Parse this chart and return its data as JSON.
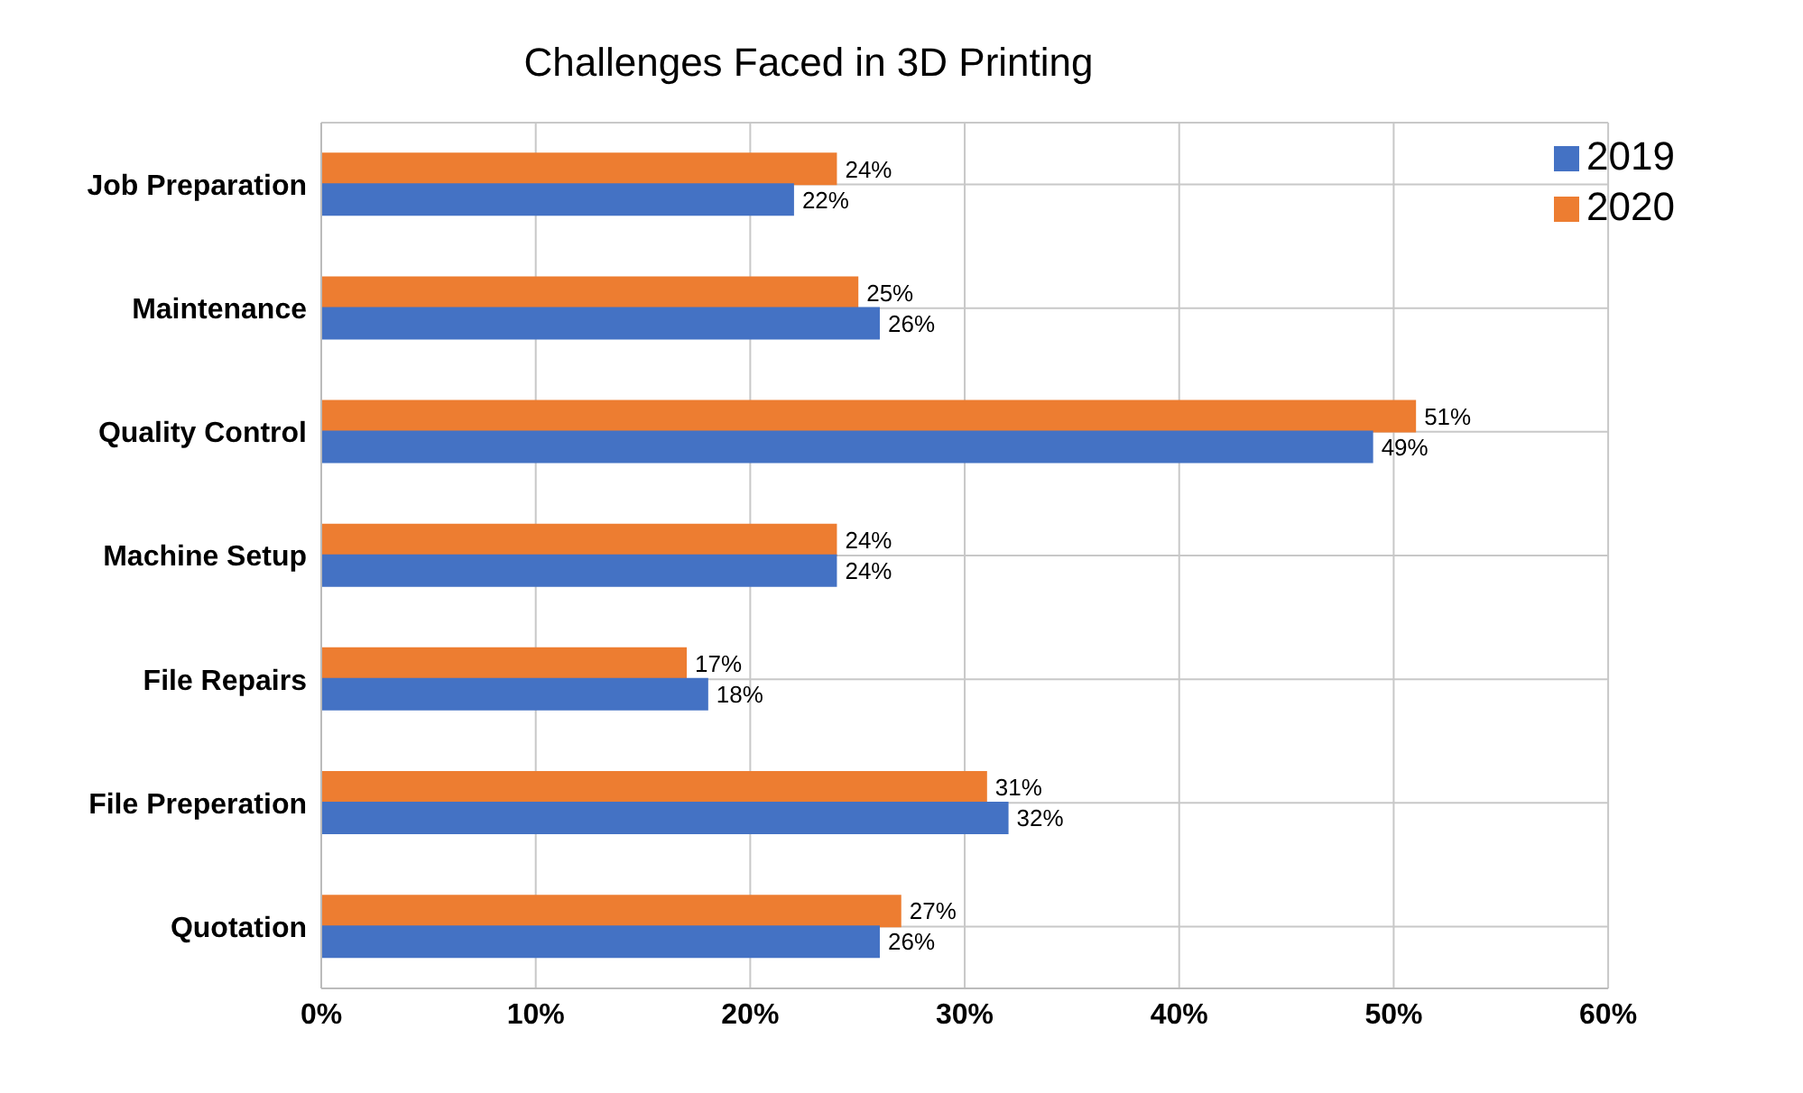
{
  "chart_data": {
    "type": "bar",
    "orientation": "horizontal",
    "title": "Challenges Faced in 3D Printing",
    "categories": [
      "Job Preparation",
      "Maintenance",
      "Quality Control",
      "Machine Setup",
      "File Repairs",
      "File Preperation",
      "Quotation"
    ],
    "series": [
      {
        "name": "2020",
        "color": "#ed7d31",
        "values": [
          24,
          25,
          51,
          24,
          17,
          31,
          27
        ],
        "value_labels": [
          "24%",
          "25%",
          "51%",
          "24%",
          "17%",
          "31%",
          "27%"
        ]
      },
      {
        "name": "2019",
        "color": "#4472c4",
        "values": [
          22,
          26,
          49,
          24,
          18,
          32,
          26
        ],
        "value_labels": [
          "22%",
          "26%",
          "49%",
          "24%",
          "18%",
          "32%",
          "26%"
        ]
      }
    ],
    "xlim": [
      0,
      60
    ],
    "xticks": [
      {
        "value": 0,
        "label": "0%"
      },
      {
        "value": 10,
        "label": "10%"
      },
      {
        "value": 20,
        "label": "20%"
      },
      {
        "value": 30,
        "label": "30%"
      },
      {
        "value": 40,
        "label": "40%"
      },
      {
        "value": 50,
        "label": "50%"
      },
      {
        "value": 60,
        "label": "60%"
      }
    ],
    "grid": true,
    "legend": "top right"
  }
}
